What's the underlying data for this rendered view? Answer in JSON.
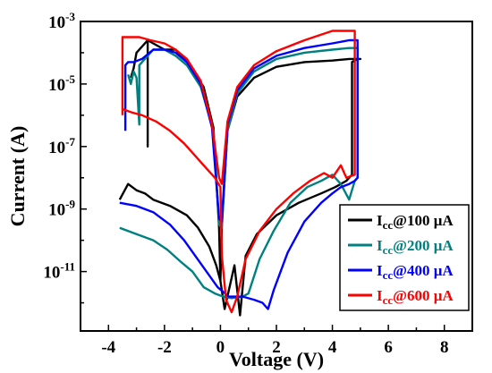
{
  "chart_data": {
    "type": "line",
    "xlabel": "Voltage (V)",
    "ylabel": "Current (A)",
    "xlim": [
      -5,
      9
    ],
    "ylim_log10": [
      -12.9,
      -3
    ],
    "yscale": "log",
    "grid": false,
    "legend_placement": "bottom-right",
    "x_ticks": [
      {
        "value": -4,
        "label": "-4"
      },
      {
        "value": -2,
        "label": "-2"
      },
      {
        "value": 0,
        "label": "0"
      },
      {
        "value": 2,
        "label": "2"
      },
      {
        "value": 4,
        "label": "4"
      },
      {
        "value": 6,
        "label": "6"
      },
      {
        "value": 8,
        "label": "8"
      }
    ],
    "y_ticks": [
      {
        "exp": -3,
        "base": "10",
        "sup": "-3"
      },
      {
        "exp": -5,
        "base": "10",
        "sup": "-5"
      },
      {
        "exp": -7,
        "base": "10",
        "sup": "-7"
      },
      {
        "exp": -9,
        "base": "10",
        "sup": "-9"
      },
      {
        "exp": -11,
        "base": "10",
        "sup": "-11"
      }
    ],
    "series": [
      {
        "name": "Icc@100 μA",
        "legend": {
          "main": "I",
          "sub": "cc",
          "rest": "@100 μA"
        },
        "color": "#000000",
        "points": [
          [
            -3.6,
            -8.7
          ],
          [
            -3.3,
            -8.2
          ],
          [
            -3.0,
            -8.4
          ],
          [
            -2.7,
            -8.5
          ],
          [
            -2.4,
            -8.7
          ],
          [
            -1.8,
            -8.9
          ],
          [
            -1.2,
            -9.2
          ],
          [
            -0.8,
            -9.6
          ],
          [
            -0.4,
            -10.2
          ],
          [
            -0.15,
            -10.8
          ],
          [
            0.0,
            -11.3
          ],
          [
            0.15,
            -12.2
          ],
          [
            0.3,
            -11.6
          ],
          [
            0.5,
            -10.8
          ],
          [
            0.7,
            -12.4
          ],
          [
            0.9,
            -10.5
          ],
          [
            1.3,
            -9.8
          ],
          [
            2.0,
            -9.2
          ],
          [
            2.8,
            -8.8
          ],
          [
            3.6,
            -8.5
          ],
          [
            4.1,
            -8.3
          ],
          [
            4.5,
            -8.1
          ],
          [
            4.7,
            -7.9
          ],
          [
            4.7,
            -4.3
          ],
          [
            4.9,
            -4.2
          ],
          [
            5.0,
            -4.2
          ],
          [
            4.6,
            -4.2
          ],
          [
            4.0,
            -4.25
          ],
          [
            3.0,
            -4.3
          ],
          [
            2.0,
            -4.45
          ],
          [
            1.2,
            -4.8
          ],
          [
            0.6,
            -5.4
          ],
          [
            0.25,
            -6.5
          ],
          [
            0.05,
            -9.5
          ],
          [
            0.0,
            -11.3
          ],
          [
            -0.05,
            -9.6
          ],
          [
            -0.25,
            -6.4
          ],
          [
            -0.6,
            -5.1
          ],
          [
            -1.1,
            -4.4
          ],
          [
            -1.6,
            -3.9
          ],
          [
            -2.0,
            -3.9
          ],
          [
            -2.4,
            -3.7
          ],
          [
            -2.6,
            -3.6
          ],
          [
            -2.6,
            -7.0
          ],
          [
            -2.6,
            -3.6
          ],
          [
            -3.0,
            -4.0
          ],
          [
            -3.1,
            -4.5
          ],
          [
            -3.2,
            -4.8
          ]
        ]
      },
      {
        "name": "Icc@200 μA",
        "legend": {
          "main": "I",
          "sub": "cc",
          "rest": "@200 μA"
        },
        "color": "#008080",
        "points": [
          [
            -3.6,
            -9.6
          ],
          [
            -3.0,
            -9.8
          ],
          [
            -2.4,
            -10.0
          ],
          [
            -1.9,
            -10.3
          ],
          [
            -1.4,
            -10.7
          ],
          [
            -1.0,
            -11.0
          ],
          [
            -0.6,
            -11.5
          ],
          [
            -0.2,
            -11.7
          ],
          [
            0.1,
            -11.8
          ],
          [
            0.4,
            -11.85
          ],
          [
            0.8,
            -11.8
          ],
          [
            1.0,
            -11.7
          ],
          [
            1.4,
            -10.6
          ],
          [
            1.9,
            -9.7
          ],
          [
            2.5,
            -8.8
          ],
          [
            3.1,
            -8.3
          ],
          [
            3.6,
            -8.1
          ],
          [
            4.0,
            -7.9
          ],
          [
            4.3,
            -8.2
          ],
          [
            4.6,
            -8.7
          ],
          [
            4.8,
            -8.1
          ],
          [
            4.9,
            -8.0
          ],
          [
            4.9,
            -3.85
          ],
          [
            4.6,
            -3.85
          ],
          [
            4.0,
            -3.9
          ],
          [
            3.0,
            -4.0
          ],
          [
            2.0,
            -4.2
          ],
          [
            1.2,
            -4.6
          ],
          [
            0.6,
            -5.3
          ],
          [
            0.25,
            -6.5
          ],
          [
            0.05,
            -9.6
          ],
          [
            -0.05,
            -9.5
          ],
          [
            -0.25,
            -6.5
          ],
          [
            -0.7,
            -5.1
          ],
          [
            -1.2,
            -4.4
          ],
          [
            -1.6,
            -4.1
          ],
          [
            -2.0,
            -3.9
          ],
          [
            -2.4,
            -3.9
          ],
          [
            -2.6,
            -4.1
          ],
          [
            -2.8,
            -4.3
          ],
          [
            -2.9,
            -4.4
          ],
          [
            -2.9,
            -6.3
          ],
          [
            -3.0,
            -4.8
          ],
          [
            -3.1,
            -4.6
          ],
          [
            -3.2,
            -5.0
          ],
          [
            -3.3,
            -4.7
          ]
        ]
      },
      {
        "name": "Icc@400 μA",
        "legend": {
          "main": "I",
          "sub": "cc",
          "rest": "@400 μA"
        },
        "color": "#0000ff",
        "points": [
          [
            -3.6,
            -8.8
          ],
          [
            -3.0,
            -8.9
          ],
          [
            -2.4,
            -9.1
          ],
          [
            -1.8,
            -9.5
          ],
          [
            -1.3,
            -10.0
          ],
          [
            -0.9,
            -10.5
          ],
          [
            -0.5,
            -11.0
          ],
          [
            -0.1,
            -11.5
          ],
          [
            0.3,
            -11.8
          ],
          [
            0.8,
            -11.8
          ],
          [
            1.2,
            -11.9
          ],
          [
            1.5,
            -12.0
          ],
          [
            1.7,
            -12.2
          ],
          [
            1.9,
            -11.6
          ],
          [
            2.4,
            -10.4
          ],
          [
            3.0,
            -9.4
          ],
          [
            3.6,
            -8.8
          ],
          [
            4.0,
            -8.5
          ],
          [
            4.3,
            -8.3
          ],
          [
            4.6,
            -8.2
          ],
          [
            4.8,
            -8.1
          ],
          [
            4.9,
            -8.0
          ],
          [
            4.9,
            -3.6
          ],
          [
            4.6,
            -3.6
          ],
          [
            4.0,
            -3.7
          ],
          [
            3.0,
            -3.85
          ],
          [
            2.0,
            -4.1
          ],
          [
            1.2,
            -4.5
          ],
          [
            0.6,
            -5.2
          ],
          [
            0.25,
            -6.3
          ],
          [
            0.05,
            -9.4
          ],
          [
            -0.05,
            -9.3
          ],
          [
            -0.3,
            -6.4
          ],
          [
            -0.7,
            -5.0
          ],
          [
            -1.2,
            -4.3
          ],
          [
            -1.6,
            -4.0
          ],
          [
            -2.0,
            -3.9
          ],
          [
            -2.4,
            -3.9
          ],
          [
            -2.8,
            -4.2
          ],
          [
            -3.1,
            -4.3
          ],
          [
            -3.3,
            -4.3
          ],
          [
            -3.4,
            -4.4
          ],
          [
            -3.4,
            -6.5
          ]
        ]
      },
      {
        "name": "Icc@600 μA",
        "legend": {
          "main": "I",
          "sub": "cc",
          "rest": "@600 μA"
        },
        "color": "#ff0000",
        "points": [
          [
            -3.5,
            -5.8
          ],
          [
            -3.2,
            -5.9
          ],
          [
            -2.8,
            -6.0
          ],
          [
            -2.3,
            -6.2
          ],
          [
            -1.8,
            -6.5
          ],
          [
            -1.3,
            -6.9
          ],
          [
            -0.9,
            -7.3
          ],
          [
            -0.5,
            -7.7
          ],
          [
            -0.2,
            -8.0
          ],
          [
            0.0,
            -8.3
          ],
          [
            0.05,
            -10.5
          ],
          [
            0.2,
            -11.9
          ],
          [
            0.4,
            -12.3
          ],
          [
            0.6,
            -11.8
          ],
          [
            0.9,
            -10.6
          ],
          [
            1.4,
            -9.7
          ],
          [
            2.0,
            -9.0
          ],
          [
            2.6,
            -8.5
          ],
          [
            3.2,
            -8.1
          ],
          [
            3.7,
            -7.85
          ],
          [
            4.0,
            -8.0
          ],
          [
            4.3,
            -7.6
          ],
          [
            4.5,
            -8.0
          ],
          [
            4.8,
            -7.9
          ],
          [
            4.8,
            -3.3
          ],
          [
            4.4,
            -3.3
          ],
          [
            4.0,
            -3.3
          ],
          [
            3.0,
            -3.6
          ],
          [
            2.0,
            -3.95
          ],
          [
            1.2,
            -4.4
          ],
          [
            0.6,
            -5.1
          ],
          [
            0.25,
            -6.2
          ],
          [
            0.05,
            -8.2
          ],
          [
            -0.05,
            -8.0
          ],
          [
            -0.3,
            -6.3
          ],
          [
            -0.7,
            -4.9
          ],
          [
            -1.2,
            -4.2
          ],
          [
            -1.6,
            -3.9
          ],
          [
            -2.0,
            -3.7
          ],
          [
            -2.5,
            -3.6
          ],
          [
            -2.9,
            -3.5
          ],
          [
            -3.3,
            -3.5
          ],
          [
            -3.5,
            -3.5
          ],
          [
            -3.5,
            -6.0
          ]
        ]
      }
    ]
  }
}
